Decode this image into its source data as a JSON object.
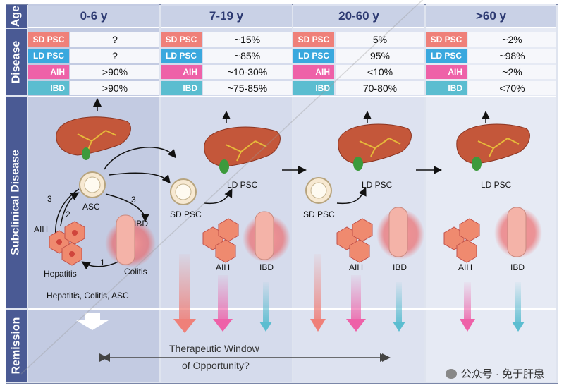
{
  "rows": {
    "age": "Age",
    "disease": "Disease",
    "subclinical": "Subclinical Disease",
    "remission": "Remission"
  },
  "columns": [
    {
      "age": "0-6 y",
      "sd_psc_tag": "SD PSC",
      "sd_psc": "?",
      "ld_psc_tag": "LD PSC",
      "ld_psc": "?",
      "aih_tag": "AIH",
      "aih": ">90%",
      "ibd_tag": "IBD",
      "ibd": ">90%"
    },
    {
      "age": "7-19 y",
      "sd_psc_tag": "SD PSC",
      "sd_psc": "~15%",
      "ld_psc_tag": "LD PSC",
      "ld_psc": "~85%",
      "aih_tag": "AIH",
      "aih": "~10-30%",
      "ibd_tag": "IBD",
      "ibd": "~75-85%"
    },
    {
      "age": "20-60 y",
      "sd_psc_tag": "SD PSC",
      "sd_psc": "5%",
      "ld_psc_tag": "LD PSC",
      "ld_psc": "95%",
      "aih_tag": "AIH",
      "aih": "<10%",
      "ibd_tag": "IBD",
      "ibd": "70-80%"
    },
    {
      "age": ">60 y",
      "sd_psc_tag": "SD PSC",
      "sd_psc": "~2%",
      "ld_psc_tag": "LD PSC",
      "ld_psc": "~98%",
      "aih_tag": "AIH",
      "aih": "~2%",
      "ibd_tag": "IBD",
      "ibd": "<70%"
    }
  ],
  "diagram": {
    "asc": "ASC",
    "aih": "AIH",
    "ibd": "IBD",
    "hepatitis": "Hepatitis",
    "colitis": "Colitis",
    "step1": "1",
    "step2": "2",
    "step3a": "3",
    "step3b": "3",
    "sd_psc": "SD PSC",
    "ld_psc_1": "LD PSC",
    "ld_psc_2": "LD PSC",
    "ld_psc_3": "LD PSC",
    "sd_psc_2": "SD PSC",
    "aih_2": "AIH",
    "ibd_2": "IBD",
    "aih_3": "AIH",
    "ibd_3": "IBD",
    "aih_4": "AIH",
    "ibd_4": "IBD",
    "early_summary": "Hepatitis, Colitis, ASC",
    "therapeutic_window": "Therapeutic Window",
    "opportunity": "of Opportunity?"
  },
  "colors": {
    "header": "#4a5a94",
    "sd_psc": "#ef8079",
    "ld_psc": "#3aa8de",
    "aih": "#ee61a8",
    "ibd": "#5bbdd0",
    "liver": "#c4573a"
  },
  "watermark": "公众号 · 免于肝患"
}
